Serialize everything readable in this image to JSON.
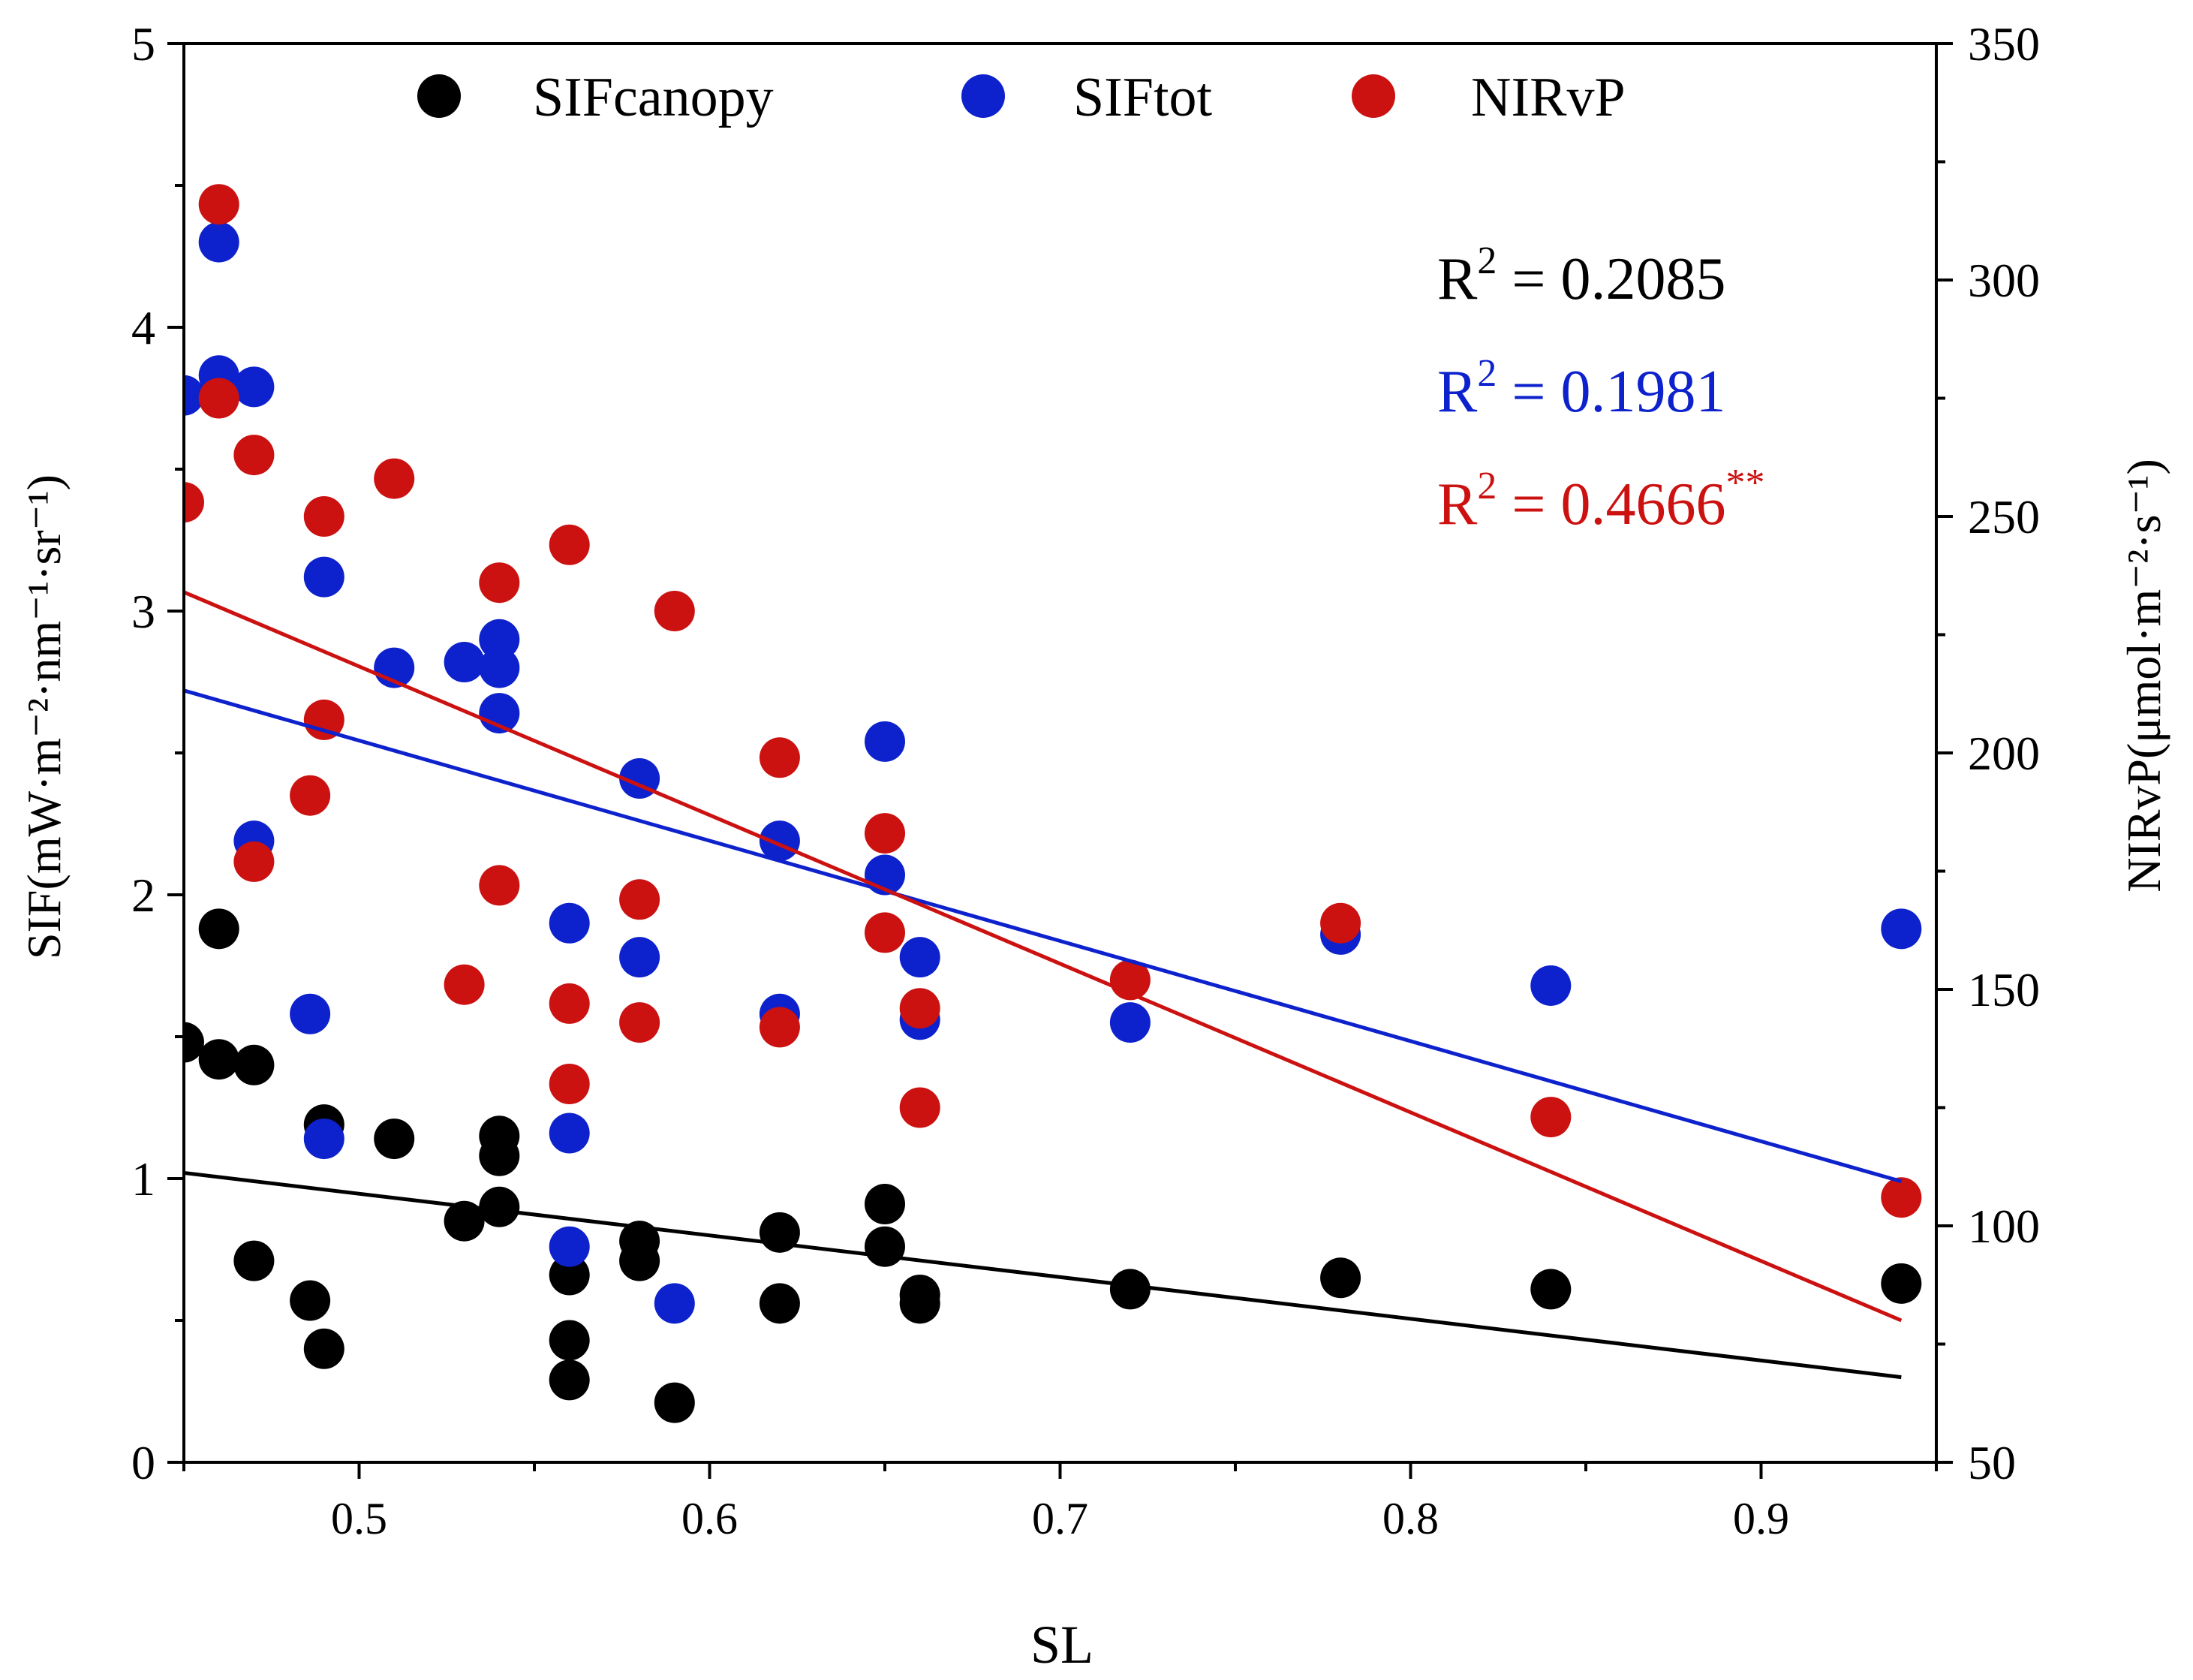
{
  "chart_data": {
    "type": "scatter",
    "xlabel": "SL",
    "ylabel_left": "SIF(mW·m⁻²·nm⁻¹·sr⁻¹)",
    "ylabel_right": "NIRvP(μmol·m⁻²·s⁻¹)",
    "xlim": [
      0.45,
      0.95
    ],
    "ylim_left": [
      0,
      5
    ],
    "ylim_right": [
      50,
      350
    ],
    "x_ticks": [
      "0.5",
      "0.6",
      "0.7",
      "0.8",
      "0.9"
    ],
    "y_ticks_left": [
      "0",
      "1",
      "2",
      "3",
      "4",
      "5"
    ],
    "y_ticks_right": [
      "50",
      "100",
      "150",
      "200",
      "250",
      "300",
      "350"
    ],
    "legend": [
      {
        "label": "SIFcanopy",
        "color": "#000000"
      },
      {
        "label": "SIFtot",
        "color": "#0d22cc"
      },
      {
        "label": "NIRvP",
        "color": "#cc1111"
      }
    ],
    "annotations": [
      {
        "base": "R",
        "exp": "2",
        "rest": " = 0.2085",
        "sup2": "",
        "color": "#000000"
      },
      {
        "base": "R",
        "exp": "2",
        "rest": " = 0.1981",
        "sup2": "",
        "color": "#0d22cc"
      },
      {
        "base": "R",
        "exp": "2",
        "rest": " = 0.4666",
        "sup2": "**",
        "color": "#cc1111"
      }
    ],
    "series": [
      {
        "name": "SIFcanopy",
        "axis": "left",
        "color": "#000000",
        "points": [
          [
            0.45,
            1.48
          ],
          [
            0.46,
            1.88
          ],
          [
            0.46,
            1.42
          ],
          [
            0.47,
            1.4
          ],
          [
            0.47,
            0.71
          ],
          [
            0.486,
            0.57
          ],
          [
            0.49,
            1.19
          ],
          [
            0.49,
            0.4
          ],
          [
            0.51,
            1.14
          ],
          [
            0.53,
            0.85
          ],
          [
            0.54,
            1.15
          ],
          [
            0.54,
            1.08
          ],
          [
            0.54,
            0.9
          ],
          [
            0.56,
            0.66
          ],
          [
            0.56,
            0.43
          ],
          [
            0.56,
            0.29
          ],
          [
            0.58,
            0.78
          ],
          [
            0.58,
            0.71
          ],
          [
            0.59,
            0.21
          ],
          [
            0.62,
            0.81
          ],
          [
            0.62,
            0.56
          ],
          [
            0.65,
            0.91
          ],
          [
            0.65,
            0.76
          ],
          [
            0.66,
            0.59
          ],
          [
            0.66,
            0.56
          ],
          [
            0.72,
            0.61
          ],
          [
            0.78,
            0.65
          ],
          [
            0.84,
            0.61
          ],
          [
            0.94,
            0.63
          ]
        ],
        "fit": {
          "x": [
            0.45,
            0.94
          ],
          "y": [
            1.02,
            0.3
          ]
        }
      },
      {
        "name": "SIFtot",
        "axis": "left",
        "color": "#0d22cc",
        "points": [
          [
            0.45,
            3.76
          ],
          [
            0.46,
            4.3
          ],
          [
            0.46,
            3.83
          ],
          [
            0.47,
            3.79
          ],
          [
            0.47,
            2.19
          ],
          [
            0.486,
            1.58
          ],
          [
            0.49,
            3.12
          ],
          [
            0.49,
            1.14
          ],
          [
            0.51,
            2.8
          ],
          [
            0.53,
            2.82
          ],
          [
            0.54,
            2.9
          ],
          [
            0.54,
            2.8
          ],
          [
            0.54,
            2.64
          ],
          [
            0.56,
            1.9
          ],
          [
            0.56,
            1.16
          ],
          [
            0.56,
            0.76
          ],
          [
            0.58,
            2.41
          ],
          [
            0.58,
            1.78
          ],
          [
            0.59,
            0.56
          ],
          [
            0.62,
            2.19
          ],
          [
            0.62,
            1.58
          ],
          [
            0.65,
            2.54
          ],
          [
            0.65,
            2.07
          ],
          [
            0.66,
            1.78
          ],
          [
            0.66,
            1.56
          ],
          [
            0.72,
            1.55
          ],
          [
            0.78,
            1.86
          ],
          [
            0.84,
            1.68
          ],
          [
            0.94,
            1.88
          ]
        ],
        "fit": {
          "x": [
            0.45,
            0.94
          ],
          "y": [
            2.72,
            0.99
          ]
        }
      },
      {
        "name": "NIRvP",
        "axis": "right",
        "color": "#cc1111",
        "points": [
          [
            0.45,
            253
          ],
          [
            0.46,
            316
          ],
          [
            0.46,
            275
          ],
          [
            0.47,
            263
          ],
          [
            0.47,
            177
          ],
          [
            0.486,
            191
          ],
          [
            0.49,
            250
          ],
          [
            0.49,
            207
          ],
          [
            0.51,
            258
          ],
          [
            0.53,
            151
          ],
          [
            0.54,
            236
          ],
          [
            0.54,
            172
          ],
          [
            0.56,
            244
          ],
          [
            0.56,
            147
          ],
          [
            0.56,
            130
          ],
          [
            0.58,
            169
          ],
          [
            0.58,
            143
          ],
          [
            0.59,
            230
          ],
          [
            0.62,
            199
          ],
          [
            0.62,
            142
          ],
          [
            0.65,
            183
          ],
          [
            0.65,
            162
          ],
          [
            0.66,
            146
          ],
          [
            0.66,
            125
          ],
          [
            0.72,
            152
          ],
          [
            0.78,
            164
          ],
          [
            0.84,
            123
          ],
          [
            0.94,
            106
          ]
        ],
        "fit": {
          "x": [
            0.45,
            0.94
          ],
          "y": [
            234,
            80
          ]
        }
      }
    ]
  }
}
